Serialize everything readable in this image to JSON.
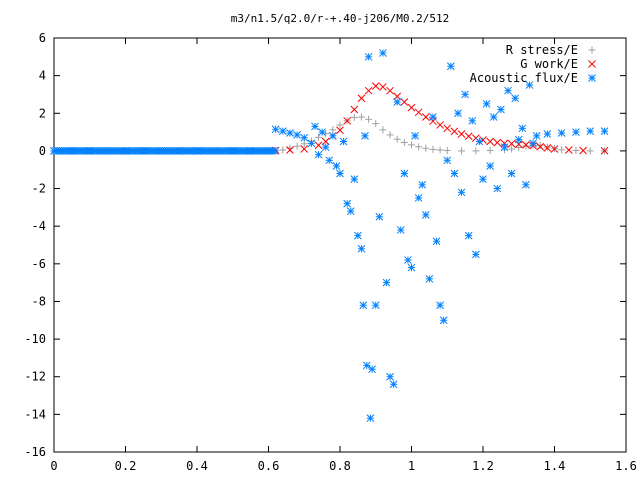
{
  "chart_data": {
    "type": "scatter",
    "title": "m3/n1.5/q2.0/r-+.40-j206/M0.2/512",
    "xlabel": "",
    "ylabel": "",
    "xlim": [
      0,
      1.6
    ],
    "ylim": [
      -16,
      6
    ],
    "x_ticks": [
      "0",
      "0.2",
      "0.4",
      "0.6",
      "0.8",
      "1",
      "1.2",
      "1.4",
      "1.6"
    ],
    "y_ticks": [
      "6",
      "4",
      "2",
      "0",
      "-2",
      "-4",
      "-6",
      "-8",
      "-10",
      "-12",
      "-14",
      "-16"
    ],
    "grid": false,
    "legend_position": "top-right",
    "series": [
      {
        "name": "R stress/E",
        "marker": "plus",
        "color": "#a0a0a0",
        "points": [
          [
            0.62,
            0.02
          ],
          [
            0.64,
            0.05
          ],
          [
            0.66,
            0.15
          ],
          [
            0.68,
            0.25
          ],
          [
            0.7,
            0.38
          ],
          [
            0.72,
            0.52
          ],
          [
            0.74,
            0.72
          ],
          [
            0.76,
            0.92
          ],
          [
            0.78,
            1.12
          ],
          [
            0.8,
            1.38
          ],
          [
            0.82,
            1.6
          ],
          [
            0.84,
            1.78
          ],
          [
            0.86,
            1.8
          ],
          [
            0.88,
            1.68
          ],
          [
            0.9,
            1.45
          ],
          [
            0.92,
            1.12
          ],
          [
            0.94,
            0.85
          ],
          [
            0.96,
            0.62
          ],
          [
            0.98,
            0.45
          ],
          [
            1.0,
            0.32
          ],
          [
            1.02,
            0.22
          ],
          [
            1.04,
            0.14
          ],
          [
            1.06,
            0.08
          ],
          [
            1.08,
            0.05
          ],
          [
            1.1,
            0.02
          ],
          [
            1.14,
            0.0
          ],
          [
            1.18,
            0.0
          ],
          [
            1.22,
            0.02
          ],
          [
            1.26,
            0.06
          ],
          [
            1.28,
            0.1
          ],
          [
            1.3,
            0.18
          ],
          [
            1.32,
            0.26
          ],
          [
            1.34,
            0.32
          ],
          [
            1.36,
            0.3
          ],
          [
            1.38,
            0.2
          ],
          [
            1.4,
            0.12
          ],
          [
            1.42,
            0.06
          ],
          [
            1.46,
            0.02
          ],
          [
            1.5,
            0.0
          ],
          [
            1.54,
            0.0
          ]
        ]
      },
      {
        "name": "G work/E",
        "marker": "cross",
        "color": "#ff0000",
        "points": [
          [
            0.62,
            0.02
          ],
          [
            0.66,
            0.05
          ],
          [
            0.7,
            0.1
          ],
          [
            0.74,
            0.3
          ],
          [
            0.76,
            0.5
          ],
          [
            0.78,
            0.8
          ],
          [
            0.8,
            1.1
          ],
          [
            0.82,
            1.6
          ],
          [
            0.84,
            2.2
          ],
          [
            0.86,
            2.8
          ],
          [
            0.88,
            3.2
          ],
          [
            0.9,
            3.45
          ],
          [
            0.92,
            3.4
          ],
          [
            0.94,
            3.2
          ],
          [
            0.96,
            2.9
          ],
          [
            0.98,
            2.6
          ],
          [
            1.0,
            2.3
          ],
          [
            1.02,
            2.05
          ],
          [
            1.04,
            1.8
          ],
          [
            1.06,
            1.58
          ],
          [
            1.08,
            1.38
          ],
          [
            1.1,
            1.2
          ],
          [
            1.12,
            1.04
          ],
          [
            1.14,
            0.9
          ],
          [
            1.16,
            0.78
          ],
          [
            1.18,
            0.68
          ],
          [
            1.2,
            0.58
          ],
          [
            1.22,
            0.5
          ],
          [
            1.24,
            0.44
          ],
          [
            1.26,
            0.4
          ],
          [
            1.28,
            0.38
          ],
          [
            1.3,
            0.36
          ],
          [
            1.32,
            0.32
          ],
          [
            1.34,
            0.28
          ],
          [
            1.36,
            0.22
          ],
          [
            1.38,
            0.16
          ],
          [
            1.4,
            0.1
          ],
          [
            1.44,
            0.05
          ],
          [
            1.48,
            0.02
          ],
          [
            1.54,
            0.01
          ]
        ]
      },
      {
        "name": "Acoustic flux/E",
        "marker": "star",
        "color": "#0080ff",
        "points": [
          [
            0.0,
            0.0
          ],
          [
            0.05,
            0.0
          ],
          [
            0.1,
            0.0
          ],
          [
            0.15,
            0.0
          ],
          [
            0.2,
            0.0
          ],
          [
            0.25,
            0.0
          ],
          [
            0.3,
            0.0
          ],
          [
            0.35,
            0.0
          ],
          [
            0.4,
            0.0
          ],
          [
            0.45,
            0.0
          ],
          [
            0.5,
            0.0
          ],
          [
            0.55,
            0.0
          ],
          [
            0.6,
            0.0
          ],
          [
            0.62,
            1.15
          ],
          [
            0.64,
            1.05
          ],
          [
            0.66,
            0.95
          ],
          [
            0.68,
            0.85
          ],
          [
            0.7,
            0.7
          ],
          [
            0.72,
            0.4
          ],
          [
            0.73,
            1.3
          ],
          [
            0.74,
            -0.2
          ],
          [
            0.75,
            1.0
          ],
          [
            0.76,
            0.2
          ],
          [
            0.77,
            -0.5
          ],
          [
            0.78,
            0.8
          ],
          [
            0.79,
            -0.8
          ],
          [
            0.8,
            -1.2
          ],
          [
            0.81,
            0.5
          ],
          [
            0.82,
            -2.8
          ],
          [
            0.83,
            -3.2
          ],
          [
            0.84,
            -1.5
          ],
          [
            0.85,
            -4.5
          ],
          [
            0.86,
            -5.2
          ],
          [
            0.865,
            -8.2
          ],
          [
            0.87,
            0.8
          ],
          [
            0.875,
            -11.4
          ],
          [
            0.88,
            5.0
          ],
          [
            0.885,
            -14.2
          ],
          [
            0.89,
            -11.6
          ],
          [
            0.9,
            -8.2
          ],
          [
            0.91,
            -3.5
          ],
          [
            0.92,
            5.2
          ],
          [
            0.93,
            -7.0
          ],
          [
            0.94,
            -12.0
          ],
          [
            0.95,
            -12.4
          ],
          [
            0.96,
            2.6
          ],
          [
            0.97,
            -4.2
          ],
          [
            0.98,
            -1.2
          ],
          [
            0.99,
            -5.8
          ],
          [
            1.0,
            -6.2
          ],
          [
            1.01,
            0.8
          ],
          [
            1.02,
            -2.5
          ],
          [
            1.03,
            -1.8
          ],
          [
            1.04,
            -3.4
          ],
          [
            1.05,
            -6.8
          ],
          [
            1.06,
            1.8
          ],
          [
            1.07,
            -4.8
          ],
          [
            1.08,
            -8.2
          ],
          [
            1.09,
            -9.0
          ],
          [
            1.1,
            -0.5
          ],
          [
            1.11,
            4.5
          ],
          [
            1.12,
            -1.2
          ],
          [
            1.13,
            2.0
          ],
          [
            1.14,
            -2.2
          ],
          [
            1.15,
            3.0
          ],
          [
            1.16,
            -4.5
          ],
          [
            1.17,
            1.6
          ],
          [
            1.18,
            -5.5
          ],
          [
            1.19,
            0.5
          ],
          [
            1.2,
            -1.5
          ],
          [
            1.21,
            2.5
          ],
          [
            1.22,
            -0.8
          ],
          [
            1.23,
            1.8
          ],
          [
            1.24,
            -2.0
          ],
          [
            1.25,
            2.2
          ],
          [
            1.26,
            0.2
          ],
          [
            1.27,
            3.2
          ],
          [
            1.28,
            -1.2
          ],
          [
            1.29,
            2.8
          ],
          [
            1.3,
            0.6
          ],
          [
            1.31,
            1.2
          ],
          [
            1.32,
            -1.8
          ],
          [
            1.33,
            3.5
          ],
          [
            1.34,
            0.4
          ],
          [
            1.35,
            0.8
          ],
          [
            1.38,
            0.9
          ],
          [
            1.42,
            0.95
          ],
          [
            1.46,
            1.0
          ],
          [
            1.5,
            1.05
          ],
          [
            1.54,
            1.05
          ]
        ]
      }
    ]
  }
}
